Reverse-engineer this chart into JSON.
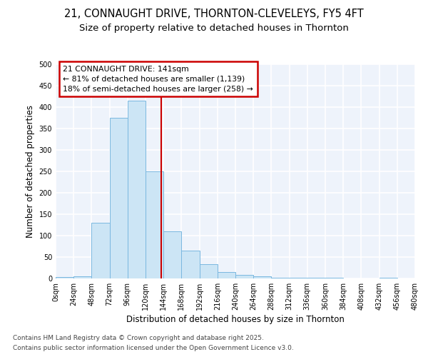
{
  "title": "21, CONNAUGHT DRIVE, THORNTON-CLEVELEYS, FY5 4FT",
  "subtitle": "Size of property relative to detached houses in Thornton",
  "xlabel": "Distribution of detached houses by size in Thornton",
  "ylabel": "Number of detached properties",
  "bin_edges": [
    0,
    24,
    48,
    72,
    96,
    120,
    144,
    168,
    192,
    216,
    240,
    264,
    288,
    312,
    336,
    360,
    384,
    408,
    432,
    456,
    480
  ],
  "counts": [
    3,
    5,
    130,
    375,
    415,
    250,
    110,
    65,
    33,
    15,
    8,
    5,
    2,
    1,
    1,
    1,
    0,
    0,
    1,
    0
  ],
  "bar_facecolor": "#cce5f5",
  "bar_edgecolor": "#7ab8e0",
  "property_size": 141,
  "annotation_title": "21 CONNAUGHT DRIVE: 141sqm",
  "annotation_line1": "← 81% of detached houses are smaller (1,139)",
  "annotation_line2": "18% of semi-detached houses are larger (258) →",
  "annotation_box_color": "#ffffff",
  "annotation_box_edgecolor": "#cc0000",
  "vline_color": "#cc0000",
  "ylim": [
    0,
    500
  ],
  "yticks": [
    0,
    50,
    100,
    150,
    200,
    250,
    300,
    350,
    400,
    450,
    500
  ],
  "tick_labels": [
    "0sqm",
    "24sqm",
    "48sqm",
    "72sqm",
    "96sqm",
    "120sqm",
    "144sqm",
    "168sqm",
    "192sqm",
    "216sqm",
    "240sqm",
    "264sqm",
    "288sqm",
    "312sqm",
    "336sqm",
    "360sqm",
    "384sqm",
    "408sqm",
    "432sqm",
    "456sqm",
    "480sqm"
  ],
  "footer1": "Contains HM Land Registry data © Crown copyright and database right 2025.",
  "footer2": "Contains public sector information licensed under the Open Government Licence v3.0.",
  "bg_color": "#eef3fb",
  "grid_color": "#ffffff",
  "fig_bg": "#ffffff"
}
